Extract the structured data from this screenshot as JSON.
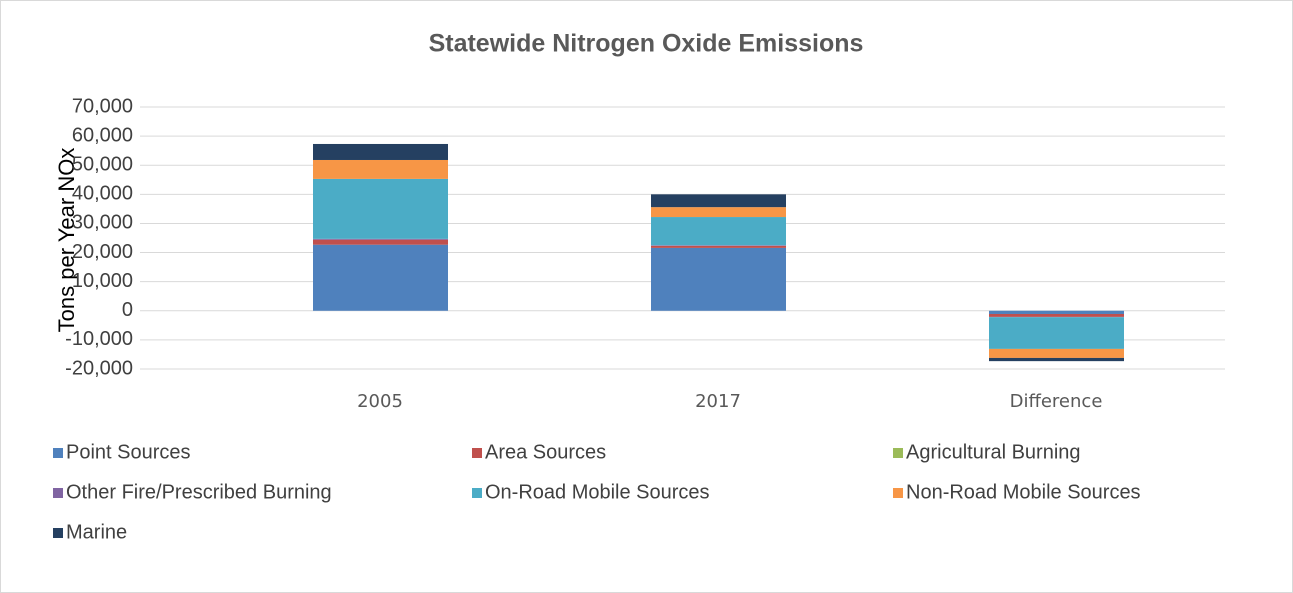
{
  "chart_data": {
    "type": "stacked_bar",
    "title": "Statewide Nitrogen Oxide Emissions",
    "y_label": "Tons per Year NOx",
    "categories": [
      "2005",
      "2017",
      "Difference"
    ],
    "series": [
      {
        "name": "Point Sources",
        "color": "#4f81bd",
        "values": [
          22700,
          21600,
          -1100
        ]
      },
      {
        "name": "Area Sources",
        "color": "#c0504d",
        "values": [
          1700,
          700,
          -1000
        ]
      },
      {
        "name": "Agricultural Burning",
        "color": "#9bbb59",
        "values": [
          0,
          0,
          0
        ]
      },
      {
        "name": "Other Fire/Prescribed Burning",
        "color": "#8064a2",
        "values": [
          300,
          200,
          -100
        ]
      },
      {
        "name": "On-Road Mobile Sources",
        "color": "#4bacc6",
        "values": [
          20600,
          9700,
          -10900
        ]
      },
      {
        "name": "Non-Road Mobile Sources",
        "color": "#f79646",
        "values": [
          6500,
          3400,
          -3100
        ]
      },
      {
        "name": "Marine",
        "color": "#254061",
        "values": [
          5500,
          4400,
          -1100
        ]
      }
    ],
    "ylim": [
      -20000,
      70000
    ],
    "yticks": [
      {
        "value": -20000,
        "label": "-20,000"
      },
      {
        "value": -10000,
        "label": "-10,000"
      },
      0,
      {
        "value": 10000,
        "label": "10,000"
      },
      {
        "value": 20000,
        "label": "20,000"
      },
      {
        "value": 30000,
        "label": "30,000"
      },
      {
        "value": 40000,
        "label": "40,000"
      },
      {
        "value": 50000,
        "label": "50,000"
      },
      {
        "value": 60000,
        "label": "60,000"
      },
      {
        "value": 70000,
        "label": "70,000"
      }
    ],
    "grid": true
  }
}
